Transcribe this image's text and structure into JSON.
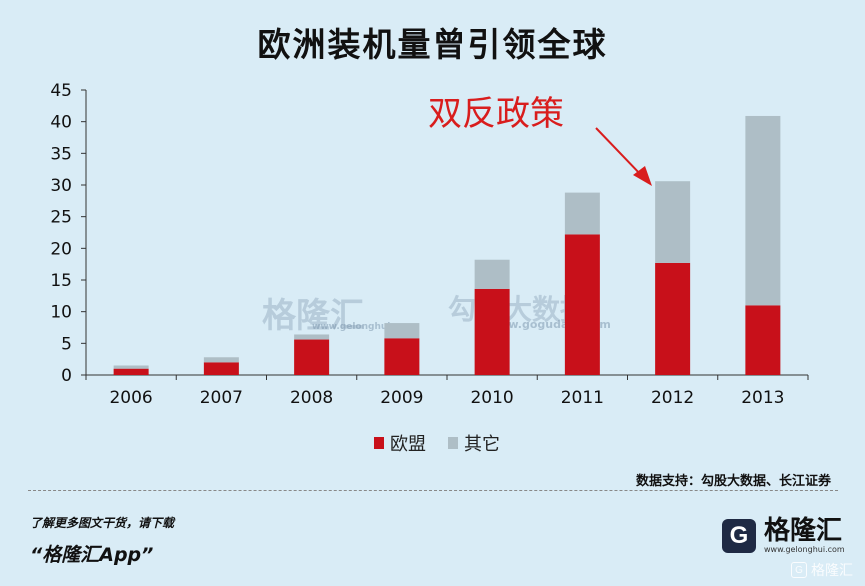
{
  "title": "欧洲装机量曾引领全球",
  "annotation": "双反政策",
  "watermarks": {
    "primary": "格隆汇",
    "primary_url": "www.gelonghui.com",
    "secondary": "勾股大数据",
    "secondary_url": "www.gogudata.com"
  },
  "source": "数据支持：勾股大数据、长江证券",
  "footer": {
    "note": "了解更多图文干货，请下载",
    "app": "“格隆汇App”",
    "brand_name": "格隆汇",
    "brand_url": "www.gelonghui.com",
    "brand_logo": "G",
    "corner_mark": "格隆汇"
  },
  "colors": {
    "eu": "#c8101a",
    "other": "#aebec6",
    "annotation": "#d91d1d"
  },
  "chart_data": {
    "type": "bar",
    "stacked": true,
    "categories": [
      "2006",
      "2007",
      "2008",
      "2009",
      "2010",
      "2011",
      "2012",
      "2013"
    ],
    "series": [
      {
        "name": "欧盟",
        "values": [
          1.0,
          2.0,
          5.6,
          5.8,
          13.6,
          22.2,
          17.7,
          11.0
        ]
      },
      {
        "name": "其它",
        "values": [
          0.5,
          0.8,
          0.8,
          2.4,
          4.6,
          6.6,
          12.9,
          29.9
        ]
      }
    ],
    "ylim": [
      0,
      45
    ],
    "yticks": [
      0,
      5,
      10,
      15,
      20,
      25,
      30,
      35,
      40,
      45
    ],
    "legend_position": "bottom",
    "grid": false
  }
}
